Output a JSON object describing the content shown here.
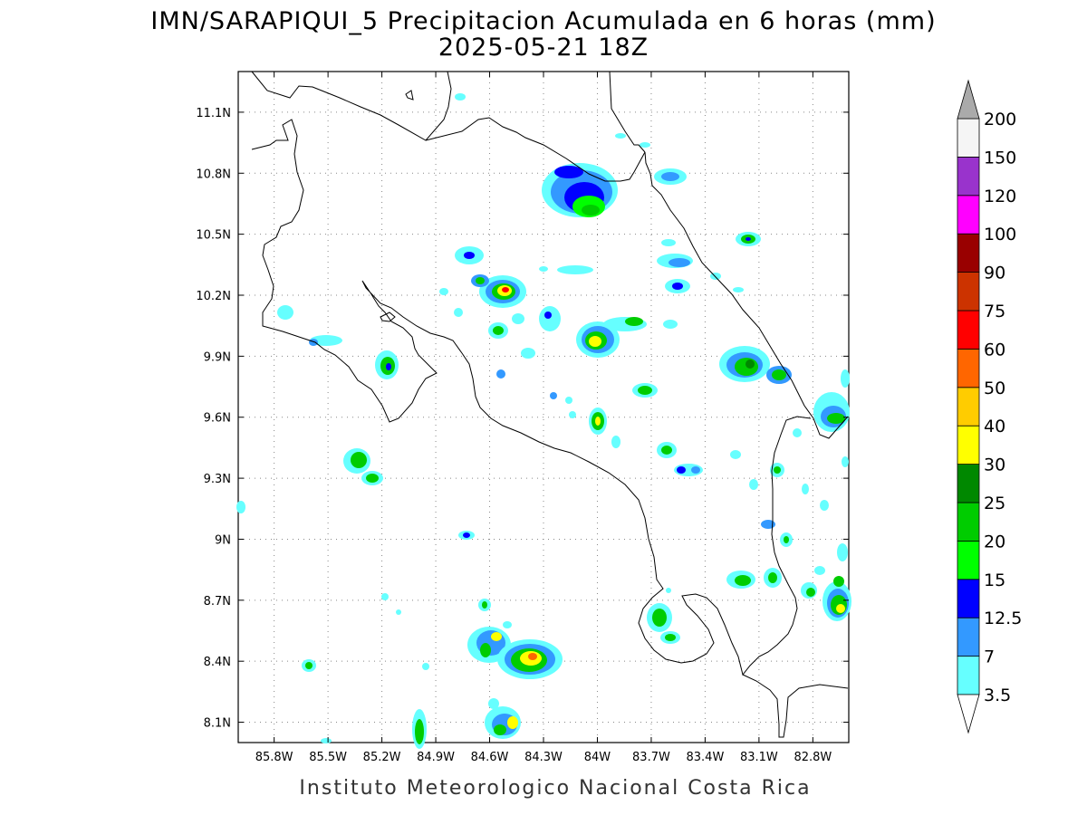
{
  "title_line1": "IMN/SARAPIQUI_5 Precipitacion Acumulada en 6 horas (mm)",
  "title_line2": "2025-05-21 18Z",
  "credit": "Instituto Meteorologico Nacional Costa Rica",
  "map": {
    "lon_range": [
      -86.0,
      -82.6
    ],
    "lat_range": [
      8.0,
      11.3
    ],
    "grid": "dotted",
    "lon_ticks": [
      "85.8W",
      "85.5W",
      "85.2W",
      "84.9W",
      "84.6W",
      "84.3W",
      "84W",
      "83.7W",
      "83.4W",
      "83.1W",
      "82.8W"
    ],
    "lat_ticks": [
      "11.1N",
      "10.8N",
      "10.5N",
      "10.2N",
      "9.9N",
      "9.6N",
      "9.3N",
      "9N",
      "8.7N",
      "8.4N",
      "8.1N"
    ]
  },
  "colorbar": {
    "labels": [
      "3.5",
      "7",
      "12.5",
      "15",
      "20",
      "25",
      "30",
      "40",
      "50",
      "60",
      "75",
      "90",
      "100",
      "120",
      "150",
      "200"
    ],
    "colors": [
      "#66ffff",
      "#3399ff",
      "#0000ff",
      "#00ff00",
      "#00cc00",
      "#008800",
      "#ffff00",
      "#ffcc00",
      "#ff6600",
      "#ff0000",
      "#cc3300",
      "#990000",
      "#ff00ff",
      "#9933cc",
      "#f5f5f5",
      "#aaaaaa"
    ],
    "over_color": "#aaaaaa",
    "under_color": "#ffffff"
  }
}
